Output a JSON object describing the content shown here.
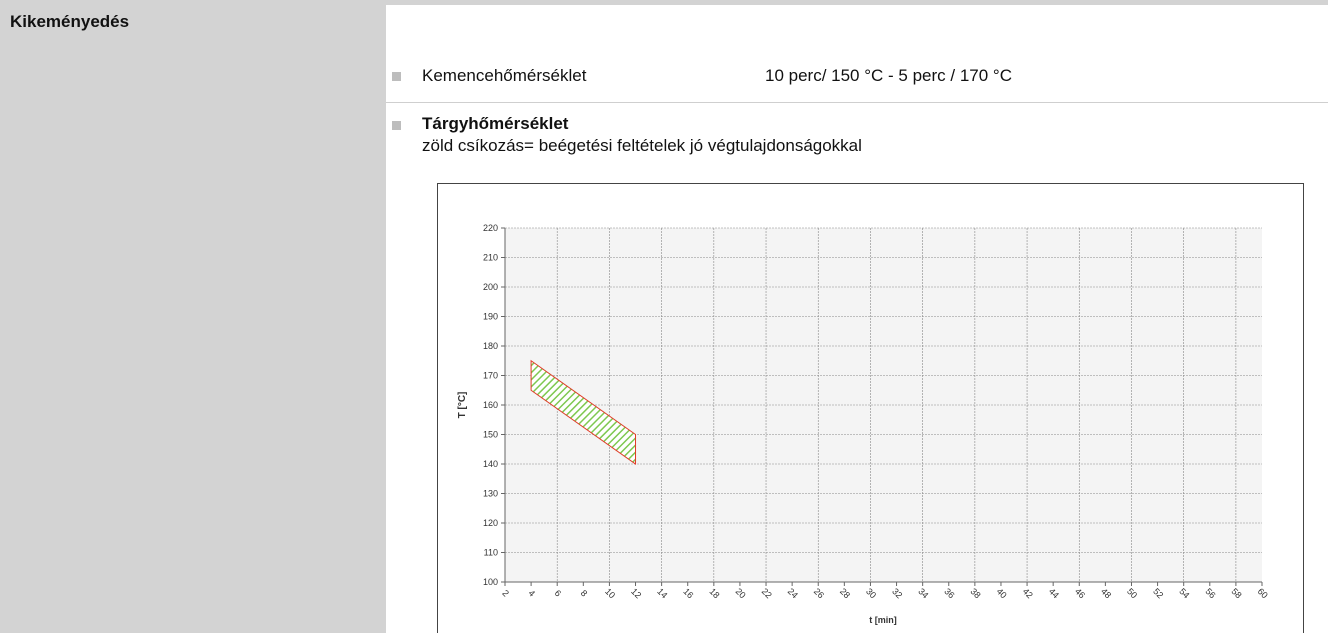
{
  "header": {
    "title": "Kikeményedés"
  },
  "items": [
    {
      "label": "Kemencehőmérséklet",
      "value": "10 perc/ 150 °C - 5 perc / 170 °C"
    },
    {
      "label": "Tárgyhőmérséklet",
      "note": "zöld csíkozás= beégetési feltételek jó végtulajdonságokkal"
    }
  ],
  "chart_data": {
    "type": "band",
    "xlabel": "t [min]",
    "ylabel": "T  [°C]",
    "x": [
      4,
      12
    ],
    "series": [
      {
        "color": "#e03c28",
        "fill": "#7ec850",
        "upper": [
          175,
          150
        ],
        "lower": [
          165,
          140
        ]
      }
    ],
    "xlim": [
      2,
      60
    ],
    "xticks": [
      2,
      4,
      6,
      8,
      10,
      12,
      14,
      16,
      18,
      20,
      22,
      24,
      26,
      28,
      30,
      32,
      34,
      36,
      38,
      40,
      42,
      44,
      46,
      48,
      50,
      52,
      54,
      56,
      58,
      60
    ],
    "ylim": [
      100,
      220
    ],
    "yticks": [
      100,
      110,
      120,
      130,
      140,
      150,
      160,
      170,
      180,
      190,
      200,
      210,
      220
    ],
    "grid": true
  }
}
